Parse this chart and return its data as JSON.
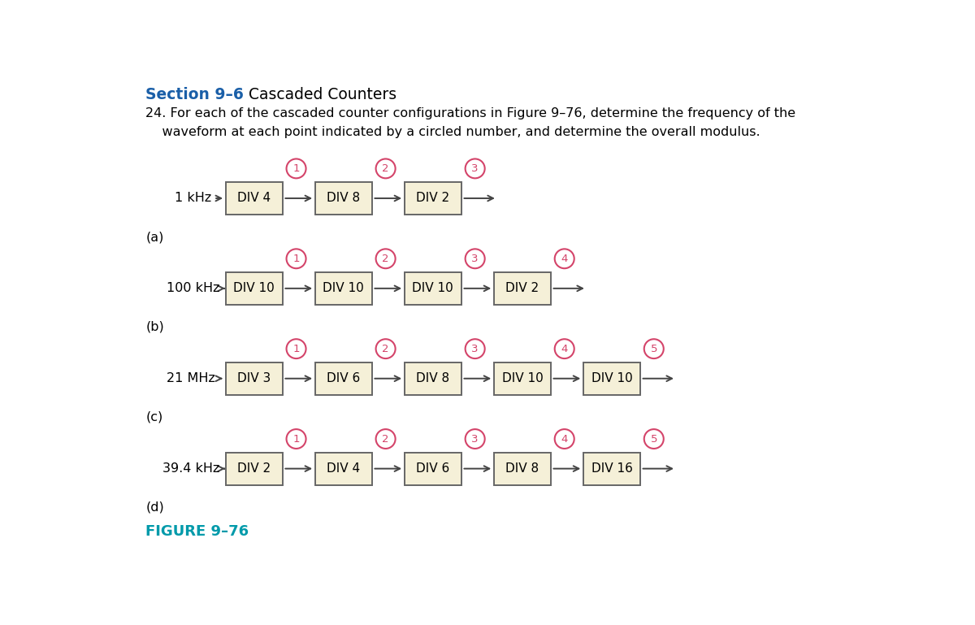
{
  "title_bold": "Section 9–6",
  "title_normal": " Cascaded Counters",
  "question_line1": "24. For each of the cascaded counter configurations in Figure 9–76, determine the frequency of the",
  "question_line2": "    waveform at each point indicated by a circled number, and determine the overall modulus.",
  "figure_label": "FIGURE 9–76",
  "title_color": "#1a5fa8",
  "figure_label_color": "#009aaa",
  "box_facecolor": "#f5f0d8",
  "box_edgecolor": "#666666",
  "circle_color": "#d4446a",
  "arrow_color": "#444444",
  "bg_color": "#f0ece0",
  "rows": [
    {
      "label": "1 kHz",
      "sublabel": "(a)",
      "boxes": [
        "DIV 4",
        "DIV 8",
        "DIV 2"
      ],
      "num_circles": 3
    },
    {
      "label": "100 kHz",
      "sublabel": "(b)",
      "boxes": [
        "DIV 10",
        "DIV 10",
        "DIV 10",
        "DIV 2"
      ],
      "num_circles": 4
    },
    {
      "label": "21 MHz",
      "sublabel": "(c)",
      "boxes": [
        "DIV 3",
        "DIV 6",
        "DIV 8",
        "DIV 10",
        "DIV 10"
      ],
      "num_circles": 5
    },
    {
      "label": "39.4 kHz",
      "sublabel": "(d)",
      "boxes": [
        "DIV 2",
        "DIV 4",
        "DIV 6",
        "DIV 8",
        "DIV 16"
      ],
      "num_circles": 5
    }
  ]
}
